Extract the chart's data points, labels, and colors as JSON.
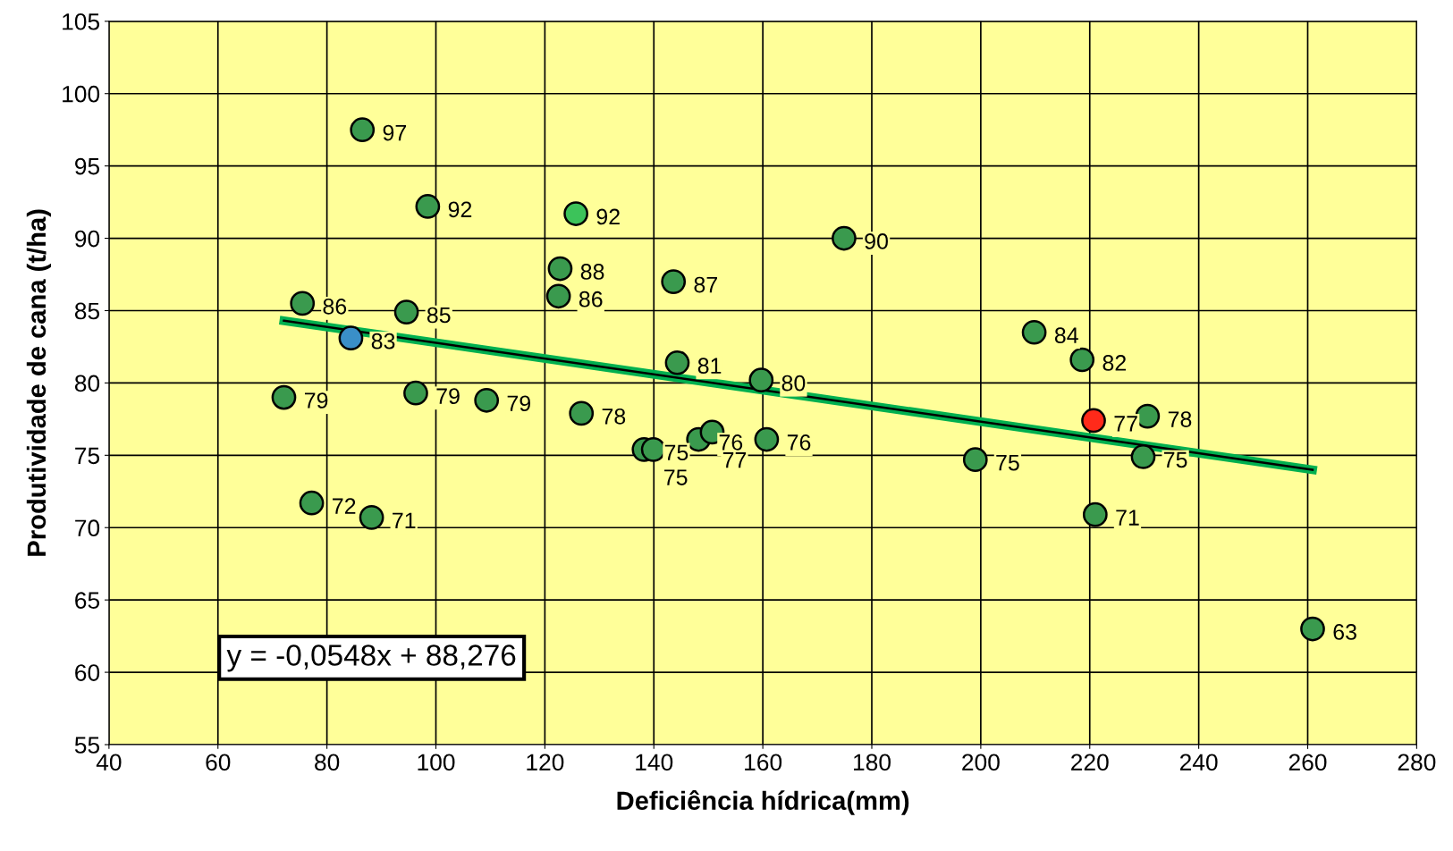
{
  "chart_data": {
    "type": "scatter",
    "xlabel": "Deficiência hídrica(mm)",
    "ylabel": "Produtividade de cana (t/ha)",
    "xlim": [
      40,
      280
    ],
    "xticks": [
      40,
      60,
      80,
      100,
      120,
      140,
      160,
      180,
      200,
      220,
      240,
      260,
      280
    ],
    "ylim": [
      55,
      105
    ],
    "yticks": [
      55,
      60,
      65,
      70,
      75,
      80,
      85,
      90,
      95,
      100,
      105
    ],
    "grid": true,
    "series": [
      {
        "marker": "circle",
        "x": [
          86.5,
          98.5,
          125.7,
          174.9,
          122.8,
          143.6,
          75.5,
          122.5,
          94.6,
          84.4,
          209.8,
          218.6,
          144.3,
          159.7,
          72.1,
          96.3,
          109.3,
          126.7,
          230.6,
          220.7,
          138.2,
          139.9,
          148.2,
          150.7,
          160.7,
          199.0,
          229.8,
          77.2,
          88.2,
          221.0,
          260.9
        ],
        "values": [
          97.5,
          92.2,
          91.7,
          90.0,
          87.9,
          87.0,
          85.5,
          86.0,
          84.9,
          83.1,
          83.5,
          81.6,
          81.4,
          80.2,
          79.0,
          79.3,
          78.8,
          77.9,
          77.7,
          77.4,
          75.4,
          75.4,
          76.1,
          76.6,
          76.1,
          74.7,
          74.9,
          71.7,
          70.7,
          70.9,
          63.0
        ],
        "colors": [
          "#3a9a4e",
          "#3a9a4e",
          "#3cc35a",
          "#3a9a4e",
          "#3a9a4e",
          "#3a9a4e",
          "#3a9a4e",
          "#3a9a4e",
          "#3a9a4e",
          "#3a8fc8",
          "#3a9a4e",
          "#3a9a4e",
          "#3a9a4e",
          "#3a9a4e",
          "#3a9a4e",
          "#3a9a4e",
          "#3a9a4e",
          "#3a9a4e",
          "#3a9a4e",
          "#ff2a1a",
          "#3a9a4e",
          "#3a9a4e",
          "#3a9a4e",
          "#3a9a4e",
          "#3a9a4e",
          "#3a9a4e",
          "#3a9a4e",
          "#3a9a4e",
          "#3a9a4e",
          "#3a9a4e",
          "#3a9a4e"
        ],
        "value_labels": [
          "97",
          "92",
          "92",
          "90",
          "88",
          "87",
          "86",
          "86",
          "85",
          "83",
          "84",
          "82",
          "81",
          "80",
          "79",
          "79",
          "79",
          "78",
          "78",
          "77",
          "75",
          "75",
          "76",
          "77",
          "76",
          "75",
          "75",
          "72",
          "71",
          "71",
          "63"
        ]
      },
      {
        "type": "line",
        "color": "#00b050",
        "x": [
          72.1,
          260.9
        ],
        "values": [
          84.3,
          74.0
        ]
      }
    ],
    "annotations": [
      "y = -0,0548x + 88,276"
    ]
  }
}
